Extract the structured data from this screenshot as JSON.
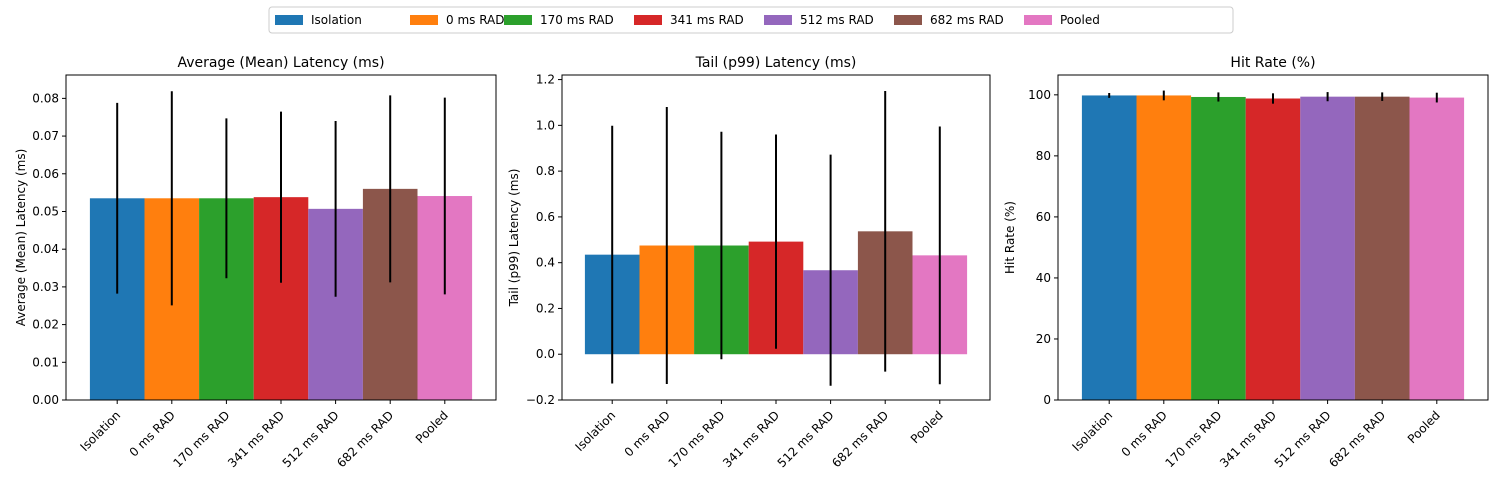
{
  "chart_data": {
    "type": "bar",
    "legend": {
      "placement": "top-center",
      "entries": [
        "Isolation",
        "0 ms RAD",
        "170 ms RAD",
        "341 ms RAD",
        "512 ms RAD",
        "682 ms RAD",
        "Pooled"
      ]
    },
    "categories": [
      "Isolation",
      "0 ms RAD",
      "170 ms RAD",
      "341 ms RAD",
      "512 ms RAD",
      "682 ms RAD",
      "Pooled"
    ],
    "colors": [
      "#1f77b4",
      "#ff7f0e",
      "#2ca02c",
      "#d62728",
      "#9467bd",
      "#8c564b",
      "#e377c2"
    ],
    "error_bar_color": "#000000",
    "grid": false,
    "panels": [
      {
        "title": "Average (Mean) Latency (ms)",
        "ylabel": "Average (Mean) Latency (ms)",
        "ylim": [
          0,
          0.0862
        ],
        "yticks": [
          0.0,
          0.01,
          0.02,
          0.03,
          0.04,
          0.05,
          0.06,
          0.07,
          0.08
        ],
        "ytick_labels": [
          "0.00",
          "0.01",
          "0.02",
          "0.03",
          "0.04",
          "0.05",
          "0.06",
          "0.07",
          "0.08"
        ],
        "values": [
          0.0535,
          0.0535,
          0.0535,
          0.0538,
          0.0507,
          0.056,
          0.0541
        ],
        "errors": [
          0.0253,
          0.0284,
          0.0212,
          0.0227,
          0.0233,
          0.0248,
          0.0261
        ]
      },
      {
        "title": "Tail (p99) Latency (ms)",
        "ylabel": "Tail (p99) Latency (ms)",
        "ylim": [
          -0.2,
          1.22
        ],
        "yticks": [
          -0.2,
          0.0,
          0.2,
          0.4,
          0.6,
          0.8,
          1.0,
          1.2
        ],
        "ytick_labels": [
          "−0.2",
          "0.0",
          "0.2",
          "0.4",
          "0.6",
          "0.8",
          "1.0",
          "1.2"
        ],
        "values": [
          0.435,
          0.475,
          0.475,
          0.492,
          0.367,
          0.537,
          0.432
        ],
        "errors": [
          0.563,
          0.605,
          0.497,
          0.468,
          0.505,
          0.613,
          0.563
        ]
      },
      {
        "title": "Hit Rate (%)",
        "ylabel": "Hit Rate (%)",
        "ylim": [
          0,
          106.5
        ],
        "yticks": [
          0,
          20,
          40,
          60,
          80,
          100
        ],
        "ytick_labels": [
          "0",
          "20",
          "40",
          "60",
          "80",
          "100"
        ],
        "values": [
          99.8,
          99.8,
          99.3,
          98.8,
          99.4,
          99.4,
          99.1
        ],
        "errors": [
          0.8,
          1.6,
          1.5,
          1.7,
          1.5,
          1.4,
          1.6
        ]
      }
    ]
  }
}
